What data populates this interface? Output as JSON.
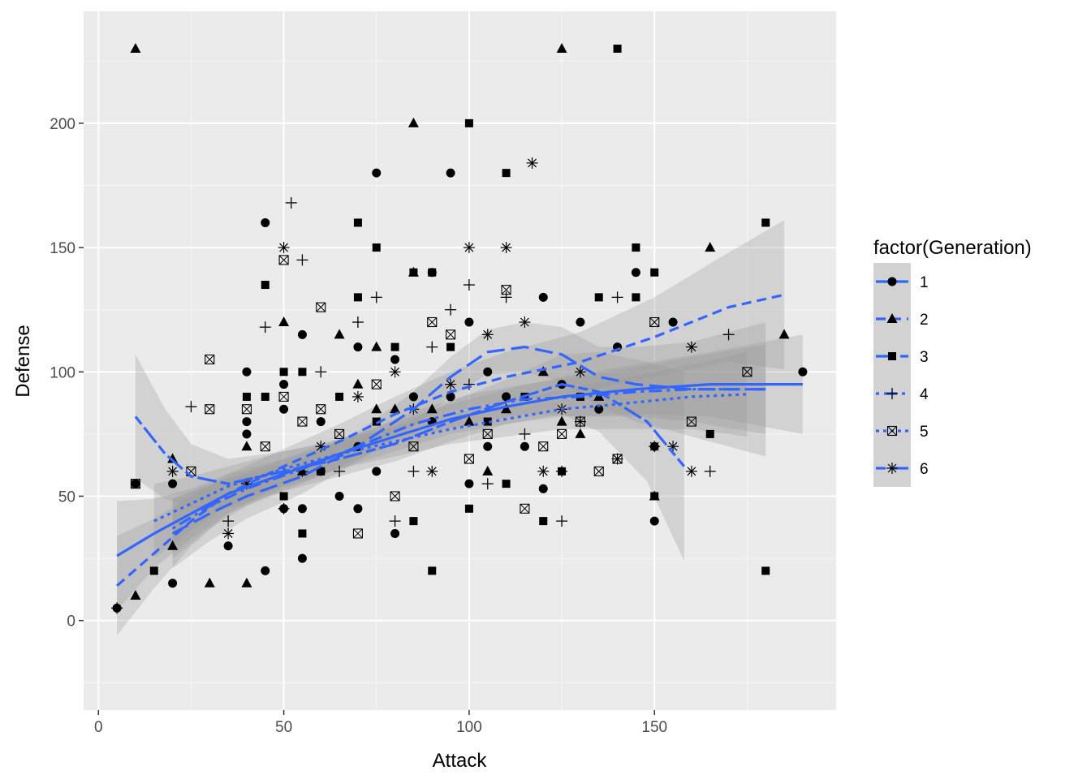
{
  "chart_data": {
    "type": "scatter",
    "title": "",
    "xlabel": "Attack",
    "ylabel": "Defense",
    "xlim": [
      -4,
      199
    ],
    "ylim": [
      -36,
      245
    ],
    "x_ticks": [
      0,
      50,
      100,
      150
    ],
    "y_ticks": [
      0,
      50,
      100,
      150,
      200
    ],
    "x_tick_labels": [
      "0",
      "50",
      "100",
      "150"
    ],
    "y_tick_labels": [
      "0",
      "50",
      "100",
      "150",
      "200"
    ],
    "grid": true,
    "legend": {
      "title": "factor(Generation)",
      "placement": "right",
      "entries": [
        "1",
        "2",
        "3",
        "4",
        "5",
        "6"
      ]
    },
    "colors": {
      "panel": "#ebebeb",
      "grid": "#ffffff",
      "points": "#000000",
      "smooth_line": "#3366ff",
      "ribbon": "#999999"
    },
    "series": [
      {
        "name": "1",
        "shape": "circle",
        "dash": "solid",
        "points": [
          [
            5,
            5
          ],
          [
            10,
            55
          ],
          [
            20,
            55
          ],
          [
            20,
            15
          ],
          [
            35,
            30
          ],
          [
            40,
            100
          ],
          [
            40,
            80
          ],
          [
            40,
            75
          ],
          [
            45,
            160
          ],
          [
            45,
            20
          ],
          [
            50,
            95
          ],
          [
            50,
            85
          ],
          [
            50,
            45
          ],
          [
            55,
            115
          ],
          [
            55,
            45
          ],
          [
            55,
            25
          ],
          [
            60,
            80
          ],
          [
            60,
            60
          ],
          [
            65,
            50
          ],
          [
            70,
            110
          ],
          [
            70,
            70
          ],
          [
            70,
            45
          ],
          [
            75,
            180
          ],
          [
            75,
            60
          ],
          [
            80,
            105
          ],
          [
            80,
            35
          ],
          [
            85,
            90
          ],
          [
            90,
            140
          ],
          [
            90,
            80
          ],
          [
            95,
            180
          ],
          [
            95,
            90
          ],
          [
            100,
            120
          ],
          [
            100,
            55
          ],
          [
            105,
            100
          ],
          [
            105,
            70
          ],
          [
            110,
            90
          ],
          [
            115,
            70
          ],
          [
            120,
            130
          ],
          [
            120,
            53
          ],
          [
            125,
            95
          ],
          [
            130,
            120
          ],
          [
            135,
            85
          ],
          [
            140,
            110
          ],
          [
            145,
            140
          ],
          [
            150,
            40
          ],
          [
            150,
            70
          ],
          [
            155,
            120
          ],
          [
            190,
            100
          ]
        ],
        "smooth": [
          [
            5,
            26
          ],
          [
            15,
            35
          ],
          [
            25,
            43
          ],
          [
            35,
            51
          ],
          [
            50,
            59
          ],
          [
            65,
            67
          ],
          [
            80,
            74
          ],
          [
            95,
            81
          ],
          [
            110,
            86
          ],
          [
            125,
            90
          ],
          [
            145,
            93
          ],
          [
            165,
            95
          ],
          [
            190,
            95
          ]
        ],
        "ribbon_halfwidth": [
          22,
          14,
          10,
          8,
          6,
          6,
          6,
          6,
          7,
          8,
          10,
          13,
          20
        ]
      },
      {
        "name": "2",
        "shape": "triangle",
        "dash": "dashed",
        "points": [
          [
            10,
            230
          ],
          [
            10,
            10
          ],
          [
            20,
            65
          ],
          [
            20,
            30
          ],
          [
            30,
            15
          ],
          [
            40,
            15
          ],
          [
            40,
            70
          ],
          [
            50,
            120
          ],
          [
            55,
            60
          ],
          [
            65,
            115
          ],
          [
            70,
            95
          ],
          [
            75,
            110
          ],
          [
            75,
            85
          ],
          [
            80,
            85
          ],
          [
            85,
            200
          ],
          [
            85,
            140
          ],
          [
            90,
            85
          ],
          [
            100,
            80
          ],
          [
            105,
            60
          ],
          [
            110,
            85
          ],
          [
            120,
            100
          ],
          [
            125,
            230
          ],
          [
            125,
            80
          ],
          [
            130,
            75
          ],
          [
            135,
            90
          ],
          [
            150,
            50
          ],
          [
            165,
            150
          ],
          [
            185,
            115
          ]
        ],
        "smooth": [
          [
            5,
            14
          ],
          [
            15,
            27
          ],
          [
            25,
            40
          ],
          [
            35,
            51
          ],
          [
            50,
            62
          ],
          [
            65,
            72
          ],
          [
            80,
            83
          ],
          [
            95,
            92
          ],
          [
            110,
            98
          ],
          [
            130,
            104
          ],
          [
            150,
            114
          ],
          [
            170,
            126
          ],
          [
            185,
            131
          ]
        ],
        "ribbon_halfwidth": [
          20,
          14,
          10,
          8,
          7,
          7,
          7,
          8,
          10,
          12,
          16,
          22,
          30
        ]
      },
      {
        "name": "3",
        "shape": "square",
        "dash": "longdash",
        "points": [
          [
            15,
            20
          ],
          [
            40,
            90
          ],
          [
            45,
            135
          ],
          [
            45,
            90
          ],
          [
            50,
            100
          ],
          [
            50,
            50
          ],
          [
            55,
            100
          ],
          [
            55,
            35
          ],
          [
            60,
            60
          ],
          [
            65,
            90
          ],
          [
            70,
            160
          ],
          [
            70,
            130
          ],
          [
            75,
            150
          ],
          [
            75,
            80
          ],
          [
            80,
            110
          ],
          [
            85,
            140
          ],
          [
            85,
            40
          ],
          [
            90,
            140
          ],
          [
            90,
            20
          ],
          [
            95,
            110
          ],
          [
            100,
            200
          ],
          [
            100,
            45
          ],
          [
            105,
            80
          ],
          [
            110,
            180
          ],
          [
            110,
            55
          ],
          [
            115,
            90
          ],
          [
            120,
            40
          ],
          [
            125,
            60
          ],
          [
            130,
            90
          ],
          [
            135,
            130
          ],
          [
            140,
            230
          ],
          [
            145,
            150
          ],
          [
            145,
            130
          ],
          [
            150,
            140
          ],
          [
            150,
            50
          ],
          [
            165,
            75
          ],
          [
            180,
            160
          ],
          [
            180,
            20
          ]
        ],
        "smooth": [
          [
            20,
            35
          ],
          [
            30,
            43
          ],
          [
            40,
            50
          ],
          [
            55,
            58
          ],
          [
            70,
            70
          ],
          [
            85,
            85
          ],
          [
            95,
            98
          ],
          [
            105,
            108
          ],
          [
            115,
            110
          ],
          [
            125,
            107
          ],
          [
            135,
            98
          ],
          [
            145,
            95
          ],
          [
            160,
            93
          ],
          [
            180,
            93
          ]
        ],
        "ribbon_halfwidth": [
          14,
          11,
          9,
          7,
          6,
          7,
          8,
          9,
          10,
          11,
          12,
          15,
          19,
          27
        ]
      },
      {
        "name": "4",
        "shape": "plus",
        "dash": "dotdash",
        "points": [
          [
            5,
            5
          ],
          [
            25,
            86
          ],
          [
            35,
            40
          ],
          [
            45,
            118
          ],
          [
            50,
            45
          ],
          [
            52,
            168
          ],
          [
            55,
            145
          ],
          [
            60,
            100
          ],
          [
            65,
            60
          ],
          [
            70,
            120
          ],
          [
            75,
            130
          ],
          [
            80,
            40
          ],
          [
            85,
            60
          ],
          [
            90,
            110
          ],
          [
            95,
            125
          ],
          [
            100,
            135
          ],
          [
            100,
            95
          ],
          [
            105,
            55
          ],
          [
            110,
            130
          ],
          [
            115,
            75
          ],
          [
            125,
            60
          ],
          [
            125,
            40
          ],
          [
            130,
            80
          ],
          [
            140,
            130
          ],
          [
            165,
            60
          ],
          [
            170,
            115
          ]
        ],
        "smooth": [
          [
            20,
            37
          ],
          [
            30,
            46
          ],
          [
            40,
            53
          ],
          [
            55,
            61
          ],
          [
            70,
            70
          ],
          [
            85,
            79
          ],
          [
            100,
            85
          ],
          [
            115,
            89
          ],
          [
            130,
            90
          ],
          [
            145,
            92
          ],
          [
            160,
            93
          ],
          [
            180,
            93
          ]
        ],
        "ribbon_halfwidth": [
          12,
          9,
          7,
          6,
          5,
          5,
          6,
          6,
          8,
          10,
          13,
          18
        ]
      },
      {
        "name": "5",
        "shape": "square-x",
        "dash": "dotted",
        "points": [
          [
            10,
            55
          ],
          [
            25,
            60
          ],
          [
            30,
            105
          ],
          [
            30,
            85
          ],
          [
            40,
            85
          ],
          [
            45,
            70
          ],
          [
            50,
            145
          ],
          [
            50,
            90
          ],
          [
            55,
            80
          ],
          [
            60,
            126
          ],
          [
            60,
            85
          ],
          [
            65,
            75
          ],
          [
            70,
            35
          ],
          [
            75,
            95
          ],
          [
            80,
            50
          ],
          [
            85,
            70
          ],
          [
            90,
            120
          ],
          [
            95,
            115
          ],
          [
            100,
            65
          ],
          [
            105,
            75
          ],
          [
            110,
            133
          ],
          [
            115,
            45
          ],
          [
            120,
            70
          ],
          [
            125,
            75
          ],
          [
            130,
            80
          ],
          [
            135,
            60
          ],
          [
            140,
            65
          ],
          [
            150,
            120
          ],
          [
            160,
            80
          ],
          [
            175,
            100
          ]
        ],
        "smooth": [
          [
            15,
            40
          ],
          [
            25,
            47
          ],
          [
            35,
            54
          ],
          [
            50,
            61
          ],
          [
            65,
            67
          ],
          [
            80,
            72
          ],
          [
            95,
            77
          ],
          [
            110,
            81
          ],
          [
            125,
            85
          ],
          [
            140,
            87
          ],
          [
            160,
            90
          ],
          [
            175,
            91
          ]
        ],
        "ribbon_halfwidth": [
          15,
          11,
          8,
          7,
          6,
          6,
          6,
          7,
          8,
          10,
          13,
          17
        ]
      },
      {
        "name": "6",
        "shape": "star",
        "dash": "twodash",
        "points": [
          [
            20,
            60
          ],
          [
            35,
            35
          ],
          [
            40,
            55
          ],
          [
            50,
            150
          ],
          [
            55,
            60
          ],
          [
            60,
            70
          ],
          [
            70,
            90
          ],
          [
            80,
            100
          ],
          [
            85,
            85
          ],
          [
            90,
            60
          ],
          [
            95,
            95
          ],
          [
            100,
            150
          ],
          [
            105,
            115
          ],
          [
            110,
            150
          ],
          [
            115,
            120
          ],
          [
            117,
            184
          ],
          [
            120,
            60
          ],
          [
            125,
            85
          ],
          [
            130,
            100
          ],
          [
            140,
            65
          ],
          [
            150,
            70
          ],
          [
            155,
            70
          ],
          [
            160,
            60
          ],
          [
            160,
            110
          ]
        ],
        "smooth": [
          [
            10,
            82
          ],
          [
            18,
            67
          ],
          [
            25,
            58
          ],
          [
            35,
            55
          ],
          [
            50,
            60
          ],
          [
            65,
            65
          ],
          [
            80,
            71
          ],
          [
            95,
            80
          ],
          [
            110,
            88
          ],
          [
            125,
            95
          ],
          [
            135,
            92
          ],
          [
            148,
            80
          ],
          [
            158,
            62
          ]
        ],
        "ribbon_halfwidth": [
          25,
          18,
          13,
          10,
          8,
          7,
          7,
          8,
          9,
          12,
          16,
          24,
          38
        ]
      }
    ]
  }
}
